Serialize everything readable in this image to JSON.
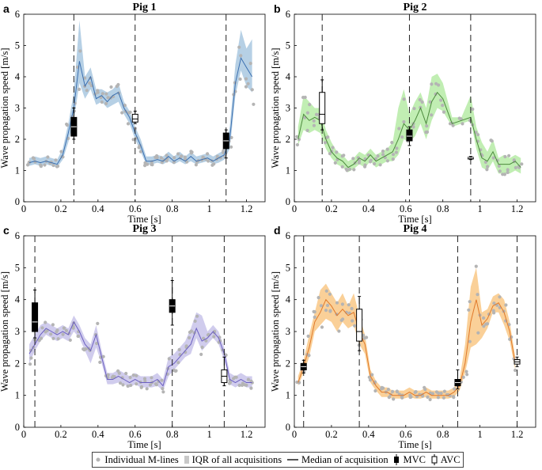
{
  "legend": {
    "points_label": "Individual M-lines",
    "iqr_label": "IQR of all acquisitions",
    "median_label": "Median of acquisition",
    "mvc_label": "MVC",
    "avc_label": "AVC"
  },
  "colors": {
    "pig1": "#a9c8e0",
    "pig1_line": "#3b6fb0",
    "pig2": "#b6eba6",
    "pig2_line": "#4b8a3c",
    "pig3": "#c8c3ea",
    "pig3_line": "#6b5fc0",
    "pig4": "#f9c886",
    "pig4_line": "#e0792a",
    "points": "#b4b4b4"
  },
  "chart_data": [
    {
      "type": "line",
      "panel": "a",
      "title": "Pig 1",
      "xlabel": "Time [s]",
      "ylabel": "Wave propagation speed [m/s]",
      "xlim": [
        0,
        1.3
      ],
      "ylim": [
        0,
        6
      ],
      "xticks": [
        "0",
        "0.2",
        "0.4",
        "0.6",
        "0.8",
        "1",
        "1.2"
      ],
      "yticks": [
        "0",
        "1",
        "2",
        "3",
        "4",
        "5",
        "6"
      ],
      "series": [
        {
          "name": "Median of acquisition",
          "x": [
            0.03,
            0.06,
            0.09,
            0.12,
            0.15,
            0.18,
            0.21,
            0.24,
            0.27,
            0.3,
            0.33,
            0.36,
            0.39,
            0.42,
            0.45,
            0.48,
            0.51,
            0.54,
            0.57,
            0.6,
            0.63,
            0.66,
            0.69,
            0.72,
            0.75,
            0.78,
            0.81,
            0.84,
            0.87,
            0.9,
            0.93,
            0.96,
            0.99,
            1.02,
            1.05,
            1.08,
            1.11,
            1.14,
            1.17,
            1.2,
            1.23
          ],
          "y": [
            1.25,
            1.3,
            1.25,
            1.3,
            1.25,
            1.2,
            1.5,
            2.2,
            3.0,
            4.5,
            3.7,
            4.0,
            3.3,
            3.4,
            3.2,
            3.4,
            3.5,
            3.0,
            2.7,
            2.2,
            1.8,
            1.3,
            1.3,
            1.35,
            1.3,
            1.45,
            1.3,
            1.4,
            1.3,
            1.45,
            1.3,
            1.35,
            1.4,
            1.3,
            1.4,
            1.5,
            2.0,
            3.8,
            4.6,
            4.3,
            4.0
          ],
          "iqr_low": [
            1.15,
            1.2,
            1.15,
            1.2,
            1.15,
            1.1,
            1.35,
            1.9,
            2.6,
            3.8,
            3.3,
            3.6,
            3.1,
            3.2,
            3.0,
            3.1,
            3.2,
            2.8,
            2.5,
            2.0,
            1.6,
            1.2,
            1.2,
            1.25,
            1.2,
            1.3,
            1.2,
            1.3,
            1.2,
            1.3,
            1.2,
            1.25,
            1.3,
            1.2,
            1.25,
            1.35,
            1.7,
            3.4,
            4.2,
            3.7,
            3.5
          ],
          "iqr_high": [
            1.4,
            1.45,
            1.4,
            1.45,
            1.4,
            1.35,
            1.7,
            2.5,
            3.5,
            5.8,
            4.0,
            4.3,
            3.6,
            3.6,
            3.5,
            3.6,
            3.8,
            3.2,
            2.9,
            2.4,
            2.0,
            1.45,
            1.45,
            1.5,
            1.45,
            1.6,
            1.45,
            1.6,
            1.45,
            1.6,
            1.45,
            1.5,
            1.55,
            1.45,
            1.55,
            1.65,
            2.4,
            4.4,
            5.5,
            4.9,
            5.2
          ]
        }
      ],
      "events": [
        0.27,
        0.6,
        1.09
      ],
      "boxplots": [
        {
          "kind": "MVC",
          "x": 0.27,
          "whisker_low": 2.0,
          "q1": 2.1,
          "median": 2.4,
          "q3": 2.7,
          "whisker_high": 3.0
        },
        {
          "kind": "AVC",
          "x": 0.6,
          "whisker_low": 2.5,
          "q1": 2.55,
          "median": 2.65,
          "q3": 2.8,
          "whisker_high": 2.9
        },
        {
          "kind": "MVC",
          "x": 1.09,
          "whisker_low": 1.4,
          "q1": 1.7,
          "median": 1.95,
          "q3": 2.2,
          "whisker_high": 2.3
        }
      ]
    },
    {
      "type": "line",
      "panel": "b",
      "title": "Pig 2",
      "xlabel": "Time [s]",
      "ylabel": "Wave propagation speed [m/s]",
      "xlim": [
        0,
        1.3
      ],
      "ylim": [
        0,
        6
      ],
      "xticks": [
        "0",
        "0.2",
        "0.4",
        "0.6",
        "0.8",
        "1",
        "1.2"
      ],
      "yticks": [
        "0",
        "1",
        "2",
        "3",
        "4",
        "5",
        "6"
      ],
      "series": [
        {
          "name": "Median of acquisition",
          "x": [
            0.02,
            0.05,
            0.08,
            0.11,
            0.14,
            0.17,
            0.2,
            0.23,
            0.26,
            0.29,
            0.32,
            0.35,
            0.38,
            0.41,
            0.44,
            0.47,
            0.5,
            0.53,
            0.56,
            0.59,
            0.62,
            0.65,
            0.68,
            0.71,
            0.74,
            0.77,
            0.8,
            0.85,
            0.9,
            0.95,
            0.98,
            1.01,
            1.04,
            1.07,
            1.1,
            1.13,
            1.16,
            1.19,
            1.22
          ],
          "y": [
            2.0,
            2.8,
            2.6,
            2.7,
            2.6,
            2.0,
            1.6,
            1.4,
            1.3,
            1.1,
            1.2,
            1.4,
            1.3,
            1.5,
            1.3,
            1.4,
            1.5,
            1.6,
            2.0,
            2.5,
            2.3,
            2.6,
            3.0,
            2.5,
            3.2,
            3.5,
            3.3,
            2.5,
            2.6,
            2.7,
            2.0,
            1.4,
            1.3,
            1.6,
            1.2,
            1.2,
            1.2,
            1.3,
            1.1
          ],
          "iqr_low": [
            1.8,
            2.3,
            2.2,
            2.3,
            2.2,
            1.7,
            1.4,
            1.2,
            1.1,
            0.95,
            1.05,
            1.2,
            1.1,
            1.3,
            1.1,
            1.2,
            1.3,
            1.3,
            1.5,
            2.0,
            1.9,
            2.1,
            2.5,
            2.0,
            2.6,
            3.0,
            2.9,
            2.4,
            2.5,
            2.6,
            1.7,
            1.1,
            1.0,
            1.3,
            0.9,
            0.9,
            0.9,
            1.0,
            0.9
          ],
          "iqr_high": [
            2.4,
            3.4,
            3.2,
            3.0,
            3.0,
            2.3,
            1.9,
            1.6,
            1.5,
            1.3,
            1.4,
            1.6,
            1.5,
            1.7,
            1.5,
            1.6,
            1.7,
            1.9,
            3.0,
            3.6,
            2.8,
            3.2,
            3.5,
            3.0,
            4.0,
            4.1,
            3.8,
            2.7,
            2.7,
            3.4,
            2.4,
            1.9,
            1.6,
            2.0,
            1.4,
            1.5,
            1.4,
            1.5,
            1.4
          ]
        }
      ],
      "events": [
        0.15,
        0.62,
        0.95
      ],
      "boxplots": [
        {
          "kind": "AVC",
          "x": 0.15,
          "whisker_low": 2.3,
          "q1": 2.5,
          "median": 2.8,
          "q3": 3.5,
          "whisker_high": 3.9
        },
        {
          "kind": "MVC",
          "x": 0.62,
          "whisker_low": 1.8,
          "q1": 1.95,
          "median": 2.1,
          "q3": 2.3,
          "whisker_high": 2.4
        },
        {
          "kind": "MVC",
          "x": 0.95,
          "whisker_low": 1.35,
          "q1": 1.38,
          "median": 1.4,
          "q3": 1.42,
          "whisker_high": 1.45
        }
      ]
    },
    {
      "type": "line",
      "panel": "c",
      "title": "Pig 3",
      "xlabel": "Time [s]",
      "ylabel": "Wave propagation speed [m/s]",
      "xlim": [
        0,
        1.3
      ],
      "ylim": [
        0,
        6
      ],
      "xticks": [
        "0",
        "0.2",
        "0.4",
        "0.6",
        "0.8",
        "1",
        "1.2"
      ],
      "yticks": [
        "0",
        "1",
        "2",
        "3",
        "4",
        "5",
        "6"
      ],
      "series": [
        {
          "name": "Median of acquisition",
          "x": [
            0.03,
            0.06,
            0.09,
            0.12,
            0.15,
            0.18,
            0.21,
            0.24,
            0.27,
            0.3,
            0.33,
            0.36,
            0.39,
            0.42,
            0.45,
            0.48,
            0.51,
            0.54,
            0.57,
            0.6,
            0.63,
            0.66,
            0.69,
            0.72,
            0.75,
            0.78,
            0.81,
            0.84,
            0.87,
            0.9,
            0.93,
            0.96,
            0.99,
            1.02,
            1.05,
            1.08,
            1.11,
            1.14,
            1.17,
            1.2,
            1.23
          ],
          "y": [
            2.3,
            2.6,
            2.9,
            3.1,
            3.0,
            2.9,
            3.0,
            2.9,
            3.3,
            3.0,
            2.6,
            2.4,
            2.9,
            2.2,
            1.5,
            1.5,
            1.6,
            1.5,
            1.4,
            1.5,
            1.4,
            1.4,
            1.4,
            1.5,
            1.3,
            1.9,
            2.0,
            2.2,
            2.4,
            2.6,
            3.1,
            2.7,
            2.8,
            3.0,
            2.8,
            2.3,
            1.5,
            1.4,
            1.5,
            1.4,
            1.4
          ],
          "iqr_low": [
            2.0,
            2.4,
            2.7,
            2.9,
            2.8,
            2.7,
            2.8,
            2.7,
            3.0,
            2.8,
            2.4,
            2.0,
            2.5,
            2.0,
            1.35,
            1.35,
            1.4,
            1.35,
            1.25,
            1.35,
            1.25,
            1.25,
            1.25,
            1.3,
            1.15,
            1.6,
            1.8,
            2.0,
            2.2,
            2.3,
            2.8,
            2.4,
            2.6,
            2.8,
            2.6,
            2.1,
            1.35,
            1.25,
            1.35,
            1.25,
            1.25
          ],
          "iqr_high": [
            2.6,
            2.9,
            3.2,
            3.3,
            3.2,
            3.1,
            3.2,
            3.1,
            3.5,
            3.2,
            2.8,
            2.6,
            3.2,
            2.4,
            1.7,
            1.7,
            1.8,
            1.7,
            1.6,
            1.7,
            1.6,
            1.6,
            1.6,
            1.7,
            1.5,
            2.2,
            2.3,
            2.5,
            2.7,
            3.1,
            3.6,
            3.5,
            3.0,
            3.2,
            3.0,
            2.5,
            1.7,
            1.6,
            1.7,
            1.6,
            1.6
          ]
        }
      ],
      "events": [
        0.06,
        0.8,
        1.08
      ],
      "boxplots": [
        {
          "kind": "MVC",
          "x": 0.06,
          "whisker_low": 2.8,
          "q1": 3.0,
          "median": 3.3,
          "q3": 3.9,
          "whisker_high": 4.3
        },
        {
          "kind": "MVC",
          "x": 0.8,
          "whisker_low": 3.2,
          "q1": 3.6,
          "median": 3.8,
          "q3": 4.0,
          "whisker_high": 4.6
        },
        {
          "kind": "AVC",
          "x": 1.08,
          "whisker_low": 1.3,
          "q1": 1.4,
          "median": 1.6,
          "q3": 1.8,
          "whisker_high": 2.2
        }
      ]
    },
    {
      "type": "line",
      "panel": "d",
      "title": "Pig 4",
      "xlabel": "Time [s]",
      "ylabel": "Wave propagation speed [m/s]",
      "xlim": [
        0,
        1.3
      ],
      "ylim": [
        0,
        6
      ],
      "xticks": [
        "0",
        "0.2",
        "0.4",
        "0.6",
        "0.8",
        "1",
        "1.2"
      ],
      "yticks": [
        "0",
        "1",
        "2",
        "3",
        "4",
        "5",
        "6"
      ],
      "series": [
        {
          "name": "Median of acquisition",
          "x": [
            0.02,
            0.05,
            0.08,
            0.11,
            0.14,
            0.17,
            0.2,
            0.23,
            0.26,
            0.29,
            0.32,
            0.35,
            0.38,
            0.41,
            0.44,
            0.47,
            0.5,
            0.53,
            0.56,
            0.59,
            0.62,
            0.65,
            0.68,
            0.71,
            0.74,
            0.77,
            0.8,
            0.83,
            0.86,
            0.89,
            0.92,
            0.95,
            0.98,
            1.01,
            1.04,
            1.07,
            1.1,
            1.13,
            1.16,
            1.19
          ],
          "y": [
            1.4,
            1.9,
            2.5,
            3.3,
            3.6,
            4.0,
            3.8,
            3.5,
            3.7,
            3.5,
            3.6,
            3.0,
            2.6,
            1.6,
            1.3,
            1.1,
            1.1,
            1.0,
            1.0,
            1.0,
            1.1,
            1.0,
            1.0,
            1.1,
            1.0,
            1.0,
            1.0,
            1.0,
            1.1,
            1.3,
            2.0,
            3.3,
            4.0,
            3.2,
            3.4,
            3.8,
            3.9,
            3.6,
            3.0,
            2.0
          ],
          "iqr_low": [
            1.3,
            1.7,
            2.2,
            3.0,
            3.2,
            3.4,
            3.3,
            3.0,
            3.3,
            3.1,
            3.2,
            2.6,
            2.3,
            1.4,
            1.15,
            0.95,
            0.95,
            0.9,
            0.9,
            0.9,
            0.95,
            0.9,
            0.9,
            0.95,
            0.9,
            0.9,
            0.9,
            0.9,
            0.95,
            1.15,
            1.7,
            2.5,
            2.6,
            2.8,
            3.1,
            3.6,
            3.6,
            3.2,
            2.7,
            1.8
          ],
          "iqr_high": [
            1.6,
            2.1,
            2.9,
            3.6,
            4.3,
            4.5,
            4.2,
            3.9,
            4.2,
            3.8,
            4.2,
            3.5,
            2.9,
            1.8,
            1.45,
            1.25,
            1.25,
            1.15,
            1.15,
            1.15,
            1.25,
            1.15,
            1.15,
            1.25,
            1.15,
            1.15,
            1.15,
            1.15,
            1.25,
            1.5,
            2.6,
            4.4,
            5.0,
            3.6,
            3.7,
            4.1,
            4.2,
            4.0,
            3.3,
            2.2
          ]
        }
      ],
      "events": [
        0.05,
        0.35,
        0.88,
        1.2
      ],
      "boxplots": [
        {
          "kind": "MVC",
          "x": 0.05,
          "whisker_low": 1.7,
          "q1": 1.8,
          "median": 1.9,
          "q3": 2.0,
          "whisker_high": 2.1
        },
        {
          "kind": "AVC",
          "x": 0.35,
          "whisker_low": 2.4,
          "q1": 2.7,
          "median": 3.0,
          "q3": 3.7,
          "whisker_high": 4.1
        },
        {
          "kind": "MVC",
          "x": 0.88,
          "whisker_low": 1.2,
          "q1": 1.3,
          "median": 1.4,
          "q3": 1.5,
          "whisker_high": 1.8
        },
        {
          "kind": "AVC",
          "x": 1.2,
          "whisker_low": 1.9,
          "q1": 1.98,
          "median": 2.05,
          "q3": 2.12,
          "whisker_high": 2.2
        }
      ]
    }
  ]
}
